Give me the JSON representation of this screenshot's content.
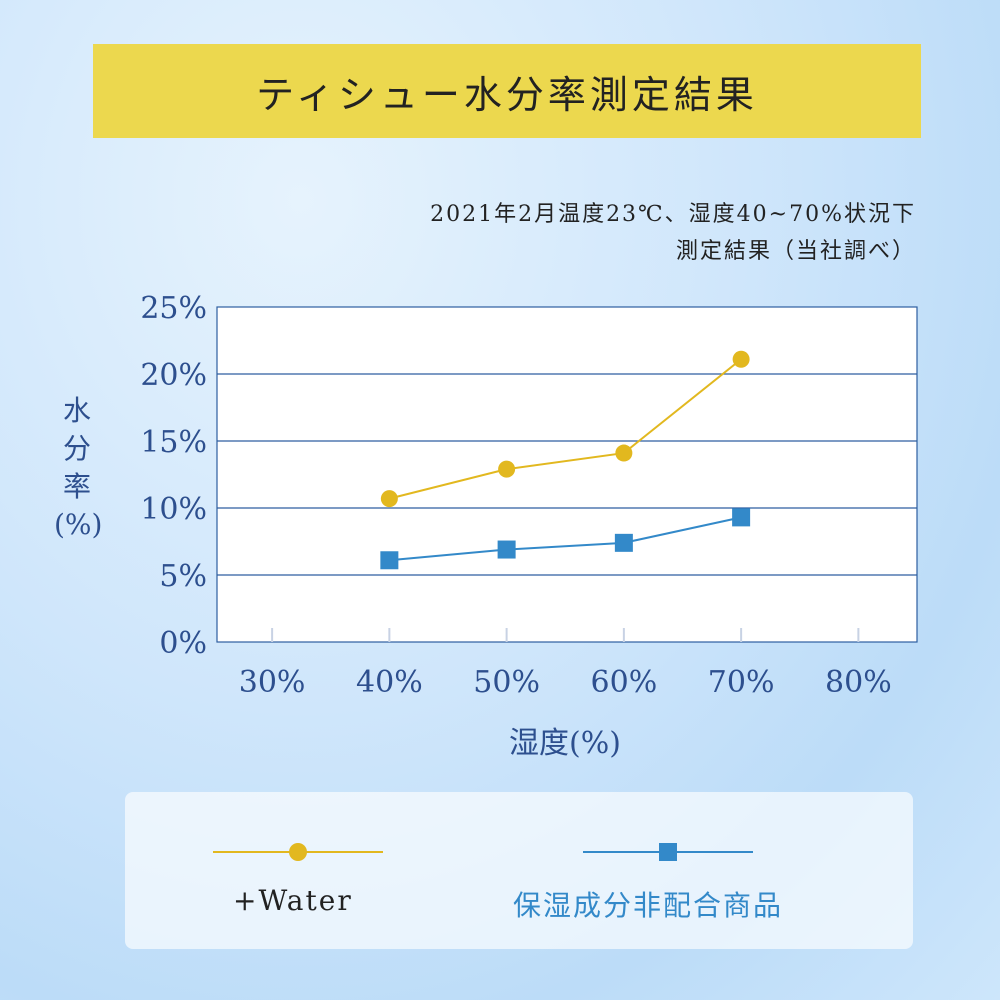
{
  "title": "ティシュー水分率測定結果",
  "subtitle_line1": "2021年2月温度23℃、湿度40~70%状況下",
  "subtitle_line2": "測定結果（当社調べ）",
  "chart_data": {
    "type": "line",
    "xlabel": "湿度(%)",
    "ylabel": "水分率(%)",
    "x_ticks": [
      "30%",
      "40%",
      "50%",
      "60%",
      "70%",
      "80%"
    ],
    "y_ticks": [
      "0%",
      "5%",
      "10%",
      "15%",
      "20%",
      "25%"
    ],
    "xlim": [
      25.3,
      85
    ],
    "ylim": [
      0,
      25
    ],
    "grid": "horizontal",
    "legend_position": "bottom",
    "x": [
      40,
      50,
      60,
      70
    ],
    "series": [
      {
        "name": "+Water",
        "values": [
          10.7,
          12.9,
          14.1,
          21.1
        ],
        "color": "#e2b81f",
        "marker": "circle"
      },
      {
        "name": "保湿成分非配合商品",
        "values": [
          6.1,
          6.9,
          7.4,
          9.3
        ],
        "color": "#3389c9",
        "marker": "square"
      }
    ]
  },
  "colors": {
    "banner": "#ecd84e",
    "axis_text": "#2d4f8e",
    "grid": "#2d5ea0"
  }
}
